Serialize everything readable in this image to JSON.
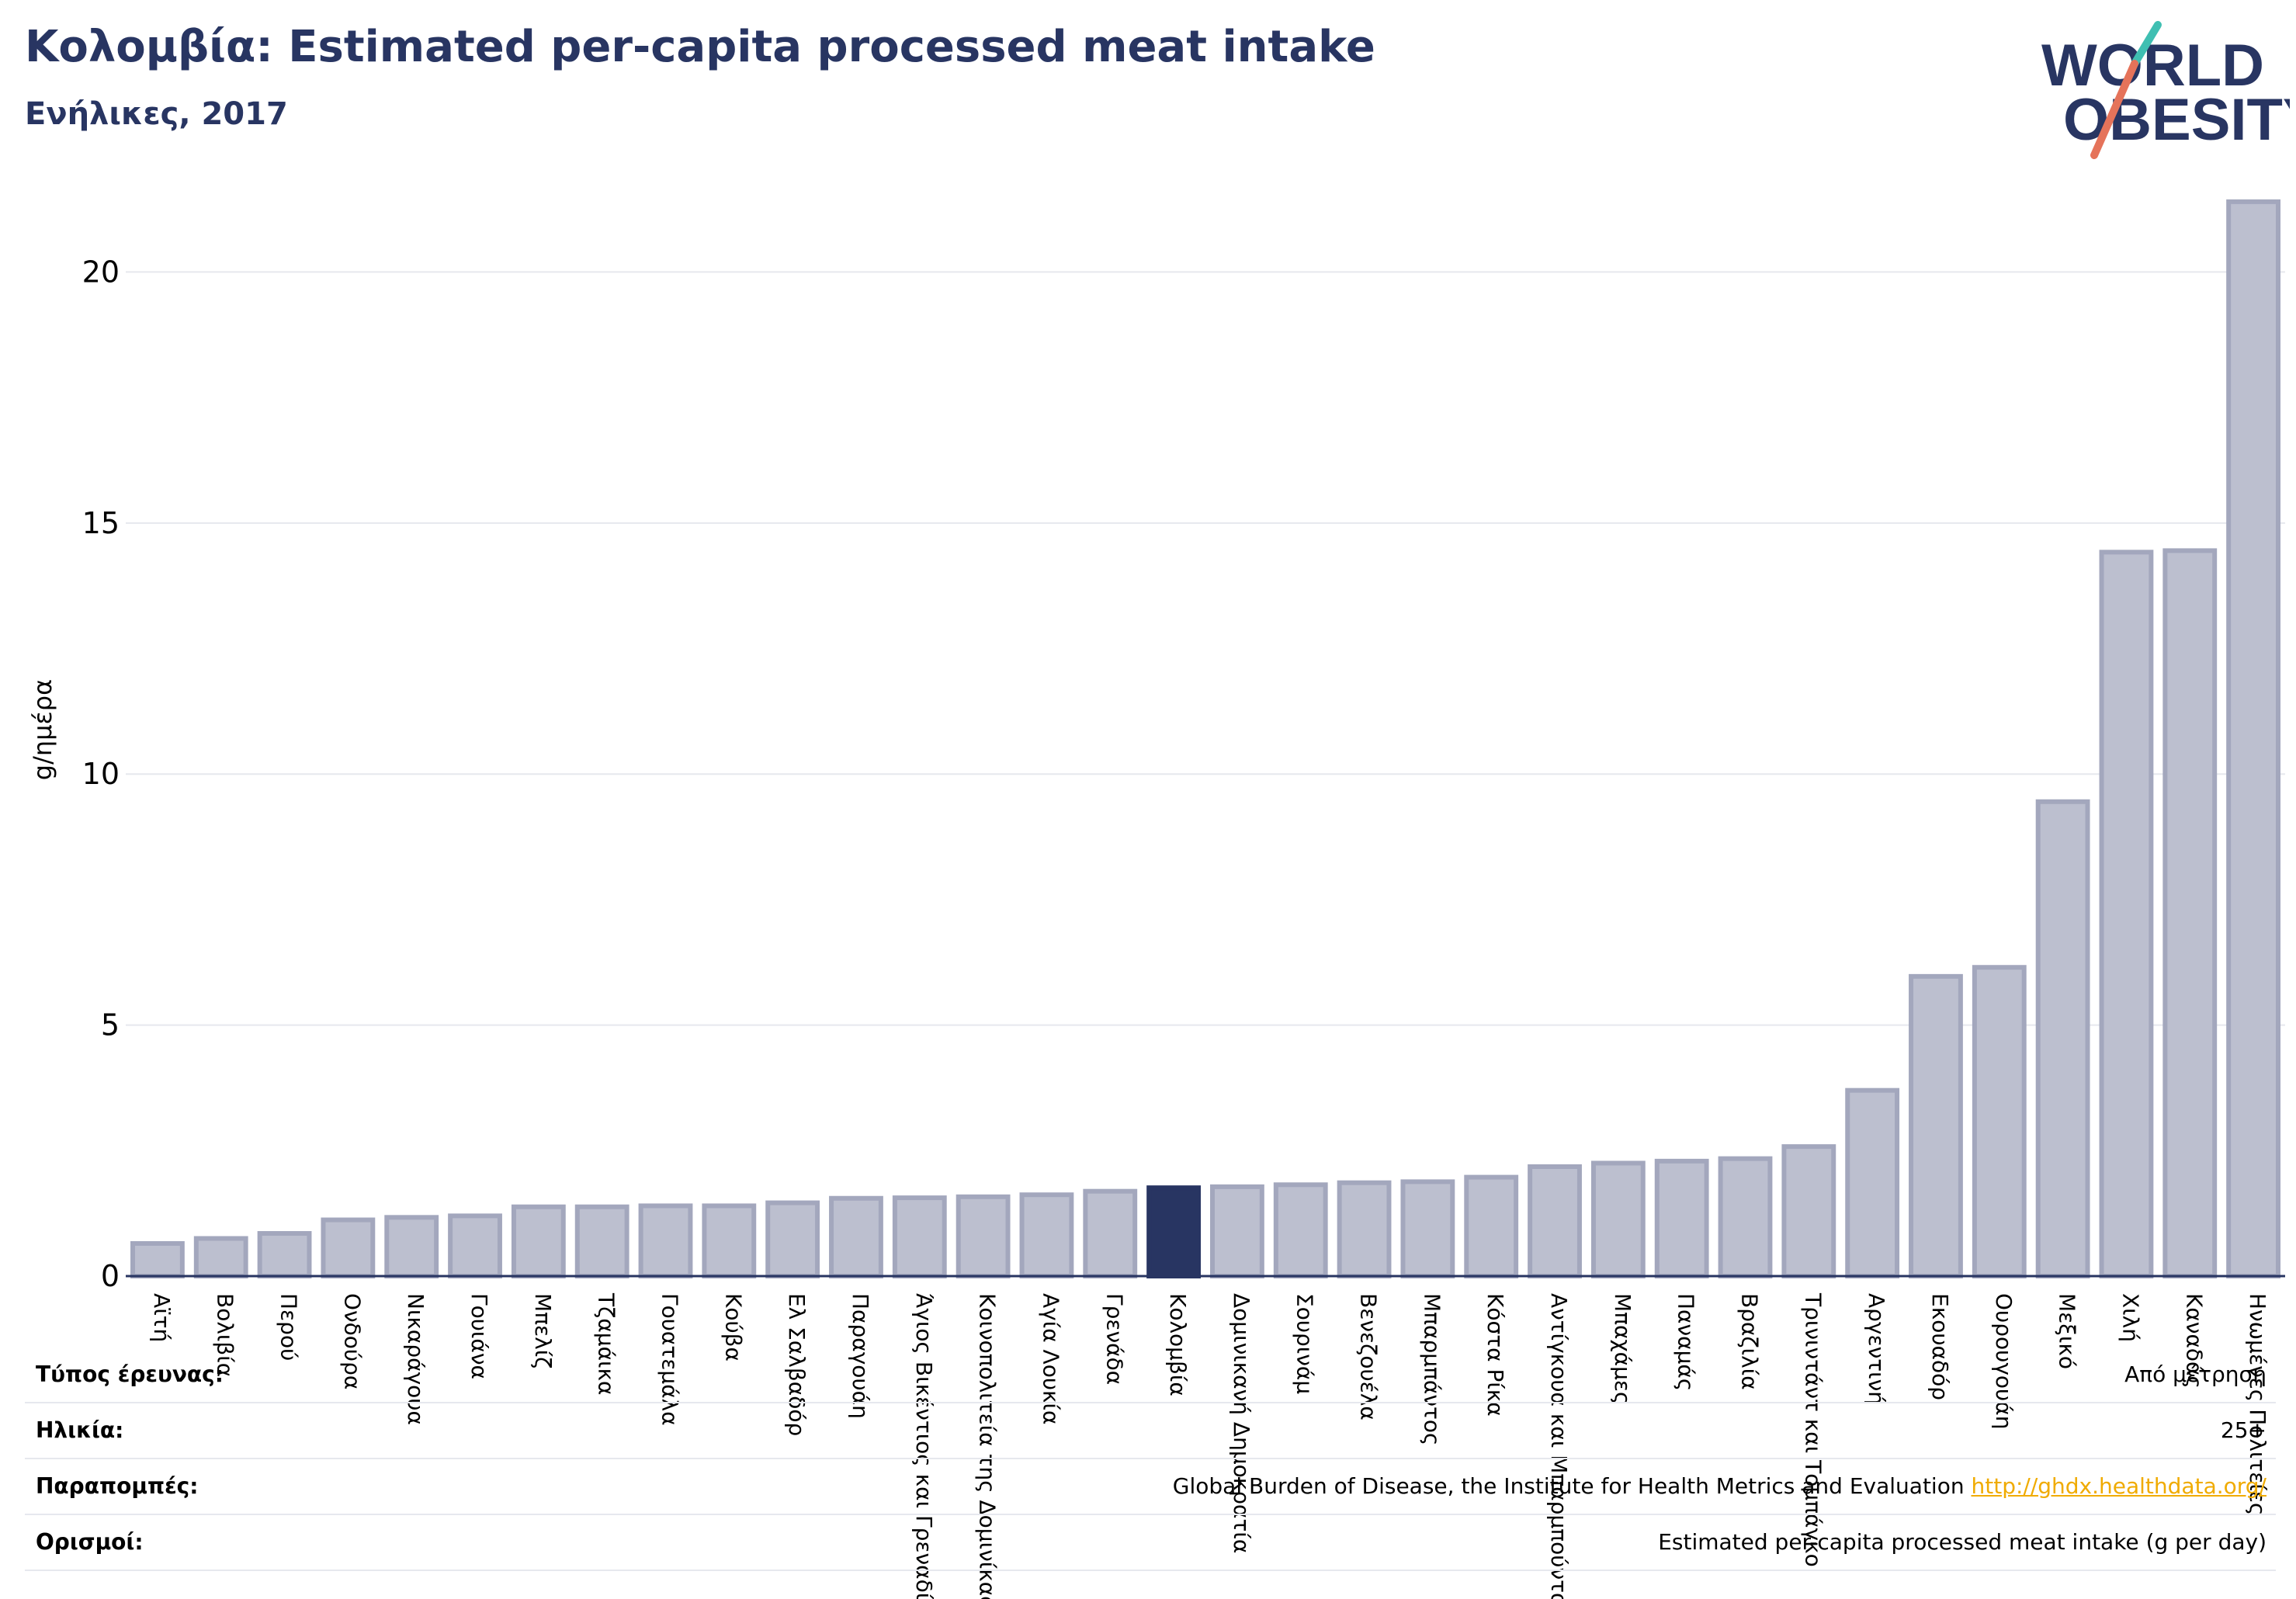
{
  "header": {
    "title": "Κολομβία: Estimated per-capita processed meat intake",
    "subtitle": "Ενήλικες, 2017"
  },
  "logo": {
    "line1": "WORLD",
    "line2": "OBESITY",
    "accent_colors": [
      "#3fbfb2",
      "#e5735a"
    ],
    "text_color": "#283562"
  },
  "chart_data": {
    "type": "bar",
    "title": "Κολομβία: Estimated per-capita processed meat intake",
    "subtitle": "Ενήλικες, 2017",
    "ylabel": "g/ημέρα",
    "xlabel": "",
    "ylim": [
      0,
      21.8
    ],
    "yticks": [
      0,
      5,
      10,
      15,
      20
    ],
    "grid": true,
    "highlight_category": "Κολομβία",
    "bar_color": "#bcbfcf",
    "bar_border_color": "#a3a7bd",
    "highlight_color": "#283562",
    "categories": [
      "Αϊτή",
      "Βολιβία",
      "Περού",
      "Ονδούρα",
      "Νικαράγουα",
      "Γουιάνα",
      "Μπελίζ",
      "Τζαμάικα",
      "Γουατεμάλα",
      "Κούβα",
      "Ελ Σαλβαδόρ",
      "Παραγουάη",
      "Άγιος Βικέντιος και Γρεναδίνες",
      "Κοινοπολιτεία της Δομινίκας",
      "Αγία Λουκία",
      "Γρενάδα",
      "Κολομβία",
      "Δομινικανή Δημοκρατία",
      "Σουρινάμ",
      "Βενεζουέλα",
      "Μπαρμπάντος",
      "Κόστα Ρίκα",
      "Αντίγκουα και Μπαρμπούντα",
      "Μπαχάμες",
      "Παναμάς",
      "Βραζιλία",
      "Τρινιντάντ και Τομπάγκο",
      "Αργεντινή",
      "Εκουαδόρ",
      "Ουρουγουάη",
      "Μεξικό",
      "Χιλή",
      "Καναδάς",
      "Ηνωμένες Πολιτείες"
    ],
    "values": [
      0.65,
      0.75,
      0.85,
      1.12,
      1.17,
      1.2,
      1.38,
      1.38,
      1.4,
      1.4,
      1.46,
      1.55,
      1.56,
      1.58,
      1.62,
      1.69,
      1.76,
      1.78,
      1.82,
      1.86,
      1.88,
      1.97,
      2.18,
      2.25,
      2.29,
      2.34,
      2.58,
      3.7,
      5.97,
      6.15,
      9.45,
      14.42,
      14.45,
      21.4
    ]
  },
  "info_table": {
    "rows": [
      {
        "label": "Τύπος έρευνας:",
        "value": "Από μέτρηση"
      },
      {
        "label": "Ηλικία:",
        "value": "25+"
      },
      {
        "label": "Παραπομπές:",
        "value": "Global Burden of Disease, the Institute for Health Metrics and Evaluation ",
        "link": "http://ghdx.healthdata.org/"
      },
      {
        "label": "Ορισμοί:",
        "value": "Estimated per-capita processed meat intake (g per day)"
      }
    ]
  }
}
